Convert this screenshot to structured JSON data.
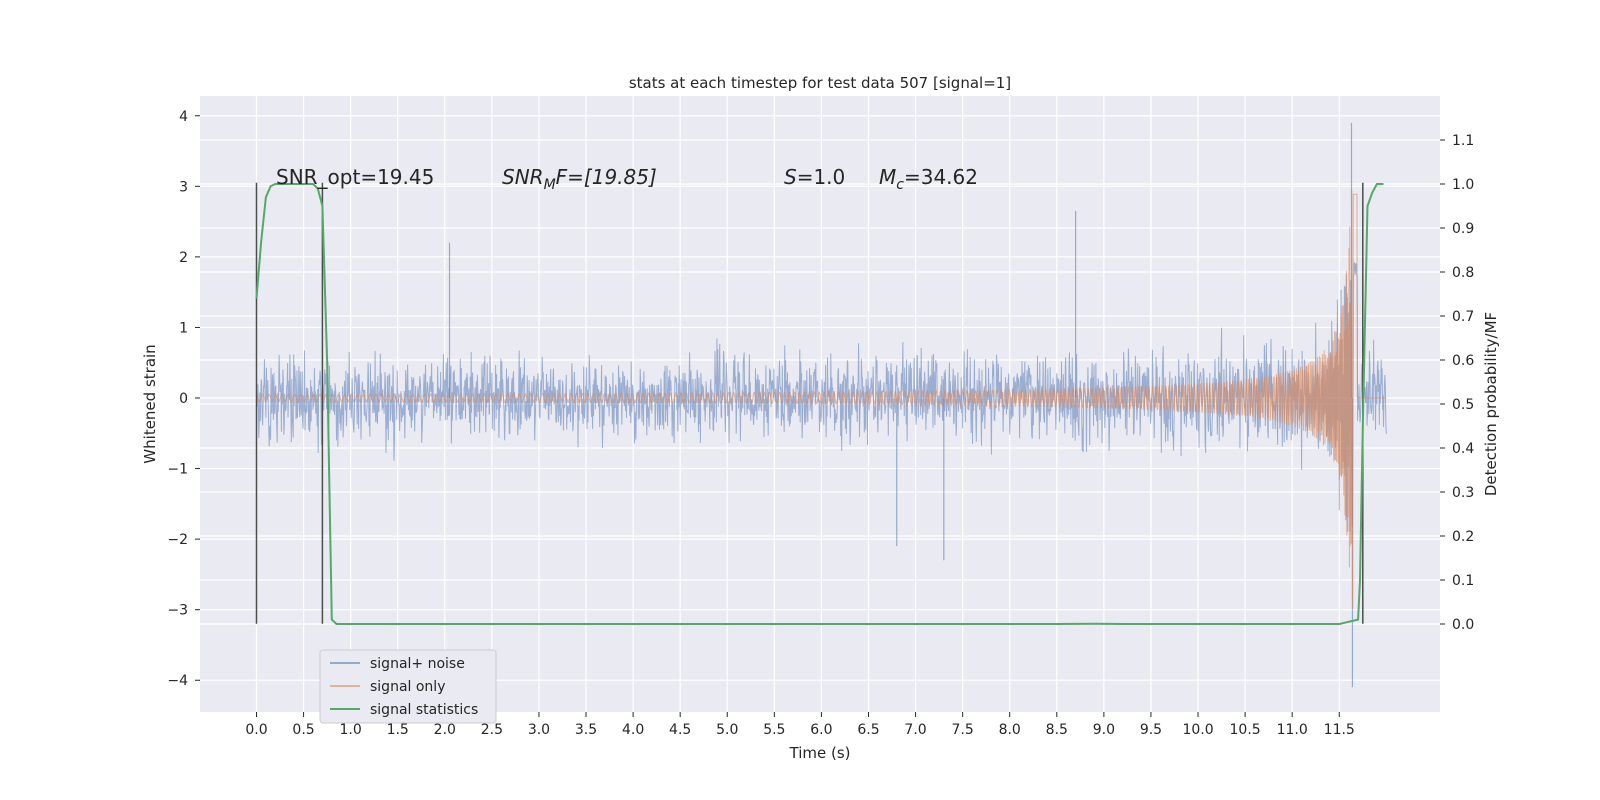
{
  "chart_data": {
    "type": "line",
    "title": "stats at each timestep for test data 507 [signal=1]",
    "xlabel": "Time (s)",
    "ylabel": "Whitened strain",
    "y2label": "Detection probability/MF",
    "xlim": [
      -0.6,
      12.57
    ],
    "ylim": [
      -4.45,
      4.28
    ],
    "y2lim": [
      -0.2,
      1.2
    ],
    "x_ticks": [
      "0.0",
      "0.5",
      "1.0",
      "1.5",
      "2.0",
      "2.5",
      "3.0",
      "3.5",
      "4.0",
      "4.5",
      "5.0",
      "5.5",
      "6.0",
      "6.5",
      "7.0",
      "7.5",
      "8.0",
      "8.5",
      "9.0",
      "9.5",
      "10.0",
      "10.5",
      "11.0",
      "11.5"
    ],
    "y_ticks": [
      "4",
      "3",
      "2",
      "1",
      "0",
      "−1",
      "−2",
      "−3",
      "−4"
    ],
    "y2_ticks": [
      "1.1",
      "1.0",
      "0.9",
      "0.8",
      "0.7",
      "0.6",
      "0.5",
      "0.4",
      "0.3",
      "0.2",
      "0.1",
      "0.0"
    ],
    "grid": true,
    "legend_position": "lower-left",
    "annotations": {
      "snr_opt": "SNR_opt=19.45",
      "snr_mf_base": "SNR",
      "snr_mf_sub": "M",
      "snr_mf_rest": "F=[19.85]",
      "s_sym": "S",
      "s_val": "=1.0",
      "mc_sym": "M",
      "mc_sub": "c",
      "mc_val": "=34.62"
    },
    "vertical_markers": [
      {
        "x": 0.0,
        "y_from": -3.2,
        "y_to": 3.05
      },
      {
        "x": 0.7,
        "y_from": -3.2,
        "y_to": 3.05
      },
      {
        "x": 11.75,
        "y_from": -3.2,
        "y_to": 3.05
      }
    ],
    "series": [
      {
        "name": "signal+ noise",
        "color": "#4c72b0",
        "axis": "left",
        "style": "dense noise band",
        "x_range": [
          0.0,
          12.0
        ],
        "typical_range": [
          -1.3,
          1.3
        ],
        "peaks": [
          {
            "x": 2.05,
            "y": 2.2
          },
          {
            "x": 8.7,
            "y": 2.65
          },
          {
            "x": 7.3,
            "y": -2.3
          },
          {
            "x": 6.8,
            "y": -2.1
          },
          {
            "x": 11.63,
            "y": 3.9
          },
          {
            "x": 11.64,
            "y": -4.1
          }
        ]
      },
      {
        "name": "signal only",
        "color": "#dd8452",
        "axis": "left",
        "style": "chirp",
        "x_range": [
          0.0,
          12.0
        ],
        "peak_time": 11.65,
        "peak_amplitude": 3.0
      },
      {
        "name": "signal statistics",
        "color": "#55a868",
        "axis": "right",
        "x": [
          0.0,
          0.05,
          0.1,
          0.15,
          0.2,
          0.3,
          0.4,
          0.5,
          0.55,
          0.6,
          0.65,
          0.7,
          0.75,
          0.8,
          0.85,
          0.9,
          1.5,
          3.0,
          5.0,
          7.0,
          8.5,
          8.9,
          9.2,
          10.0,
          11.0,
          11.5,
          11.7,
          11.72,
          11.75,
          11.8,
          11.85,
          11.9,
          11.97
        ],
        "values": [
          0.74,
          0.87,
          0.97,
          0.995,
          1.0,
          1.0,
          1.0,
          1.0,
          1.0,
          1.0,
          0.99,
          0.95,
          0.6,
          0.01,
          0.0,
          0.0,
          0.0,
          0.0,
          0.0,
          0.0,
          0.0,
          0.0005,
          0.0,
          0.0,
          0.0,
          0.0,
          0.01,
          0.1,
          0.45,
          0.95,
          0.98,
          1.0,
          1.0
        ]
      }
    ]
  }
}
